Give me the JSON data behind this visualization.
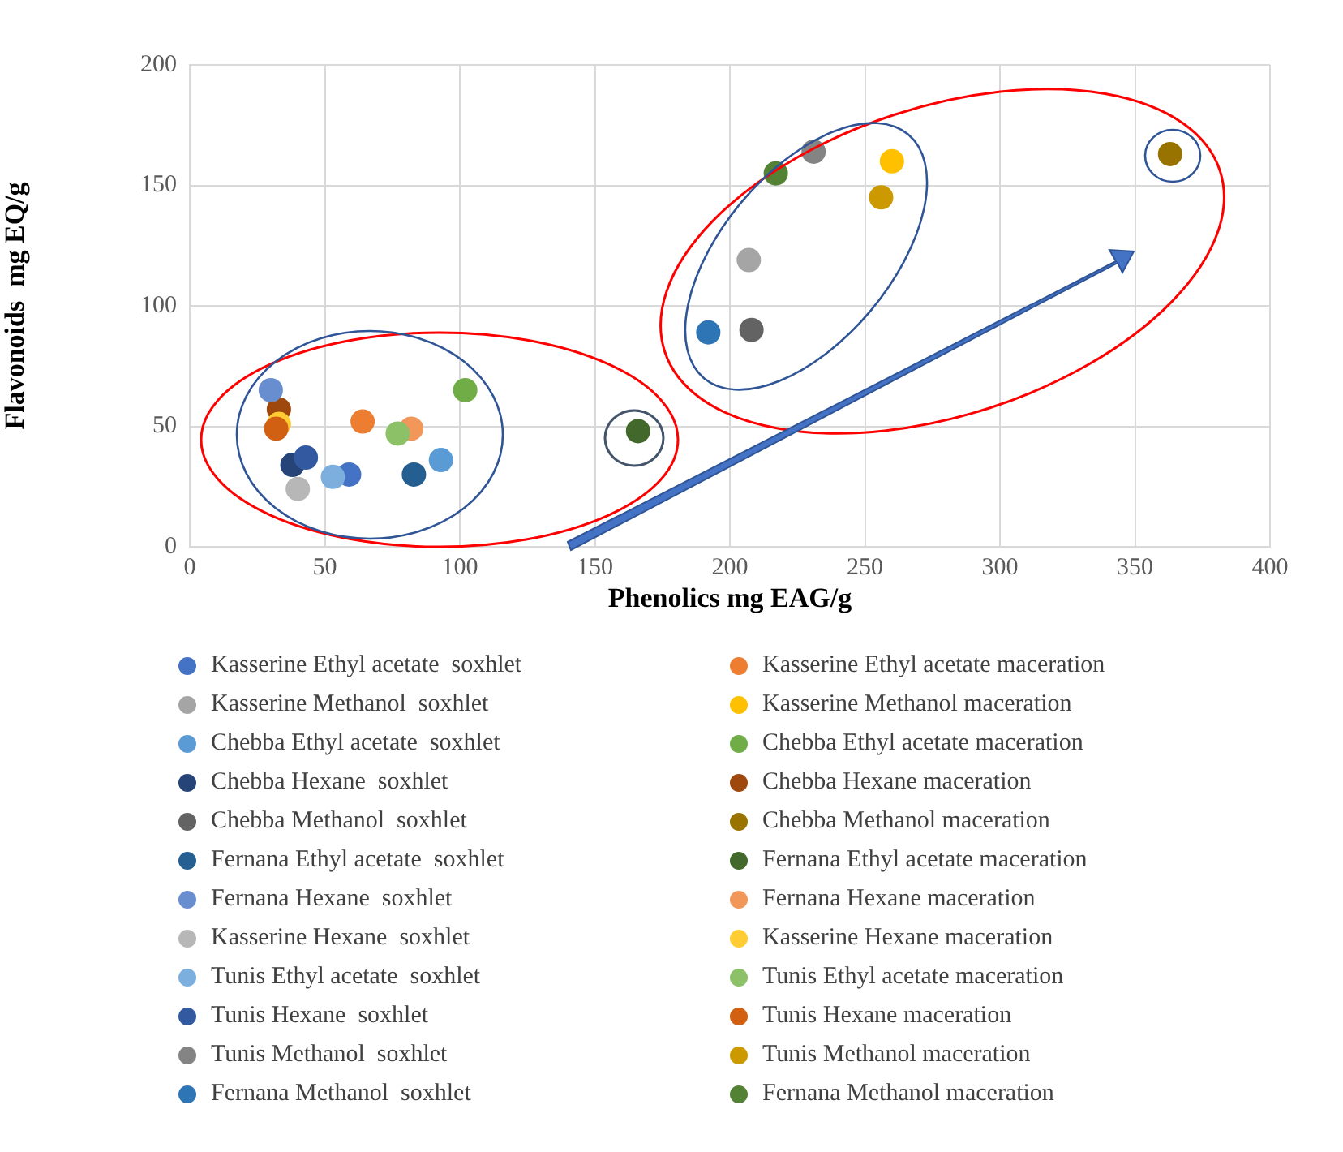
{
  "chart_data": {
    "type": "scatter",
    "xlabel": "Phenolics mg EAG/g",
    "ylabel": "Flavonoids  mg EQ/g",
    "xlim": [
      0,
      400
    ],
    "xticks": [
      0,
      50,
      100,
      150,
      200,
      250,
      300,
      350,
      400
    ],
    "ylim": [
      0,
      200
    ],
    "yticks": [
      0,
      50,
      100,
      150,
      200
    ],
    "grid": true,
    "legend": "bottom",
    "marker": "circle",
    "series": [
      {
        "name": "Kasserine Ethyl acetate  soxhlet",
        "color": "#4472c4",
        "x": [
          59
        ],
        "values": [
          30
        ]
      },
      {
        "name": "Kasserine Ethyl acetate maceration",
        "color": "#ed7d31",
        "x": [
          64
        ],
        "values": [
          52
        ]
      },
      {
        "name": "Kasserine Methanol  soxhlet",
        "color": "#a5a5a5",
        "x": [
          207
        ],
        "values": [
          119
        ]
      },
      {
        "name": "Kasserine Methanol maceration",
        "color": "#ffc000",
        "x": [
          260
        ],
        "values": [
          160
        ]
      },
      {
        "name": "Chebba Ethyl acetate  soxhlet",
        "color": "#5b9bd5",
        "x": [
          93
        ],
        "values": [
          36
        ]
      },
      {
        "name": "Chebba Ethyl acetate maceration",
        "color": "#70ad47",
        "x": [
          102
        ],
        "values": [
          65
        ]
      },
      {
        "name": "Chebba Hexane  soxhlet",
        "color": "#264478",
        "x": [
          38
        ],
        "values": [
          34
        ]
      },
      {
        "name": "Chebba Hexane maceration",
        "color": "#9e480e",
        "x": [
          33
        ],
        "values": [
          57
        ]
      },
      {
        "name": "Chebba Methanol  soxhlet",
        "color": "#636363",
        "x": [
          208
        ],
        "values": [
          90
        ]
      },
      {
        "name": "Chebba Methanol maceration",
        "color": "#997300",
        "x": [
          363
        ],
        "values": [
          163
        ]
      },
      {
        "name": "Fernana Ethyl acetate  soxhlet",
        "color": "#255e91",
        "x": [
          83
        ],
        "values": [
          30
        ]
      },
      {
        "name": "Fernana Ethyl acetate maceration",
        "color": "#43682b",
        "x": [
          166
        ],
        "values": [
          48
        ]
      },
      {
        "name": "Fernana Hexane  soxhlet",
        "color": "#698ed0",
        "x": [
          30
        ],
        "values": [
          65
        ]
      },
      {
        "name": "Fernana Hexane maceration",
        "color": "#f1975a",
        "x": [
          82
        ],
        "values": [
          49
        ]
      },
      {
        "name": "Kasserine Hexane  soxhlet",
        "color": "#b7b7b7",
        "x": [
          40
        ],
        "values": [
          24
        ]
      },
      {
        "name": "Kasserine Hexane maceration",
        "color": "#ffcd33",
        "x": [
          33
        ],
        "values": [
          51
        ]
      },
      {
        "name": "Tunis Ethyl acetate  soxhlet",
        "color": "#7cafdd",
        "x": [
          53
        ],
        "values": [
          29
        ]
      },
      {
        "name": "Tunis Ethyl acetate maceration",
        "color": "#8cc168",
        "x": [
          77
        ],
        "values": [
          47
        ]
      },
      {
        "name": "Tunis Hexane  soxhlet",
        "color": "#335aa1",
        "x": [
          43
        ],
        "values": [
          37
        ]
      },
      {
        "name": "Tunis Hexane maceration",
        "color": "#d26012",
        "x": [
          32
        ],
        "values": [
          49
        ]
      },
      {
        "name": "Tunis Methanol  soxhlet",
        "color": "#848484",
        "x": [
          231
        ],
        "values": [
          164
        ]
      },
      {
        "name": "Tunis Methanol maceration",
        "color": "#cc9a00",
        "x": [
          256
        ],
        "values": [
          145
        ]
      },
      {
        "name": "Fernana Methanol  soxhlet",
        "color": "#2e75b6",
        "x": [
          192
        ],
        "values": [
          89
        ]
      },
      {
        "name": "Fernana Methanol maceration",
        "color": "#548235",
        "x": [
          217
        ],
        "values": [
          155
        ]
      }
    ]
  }
}
